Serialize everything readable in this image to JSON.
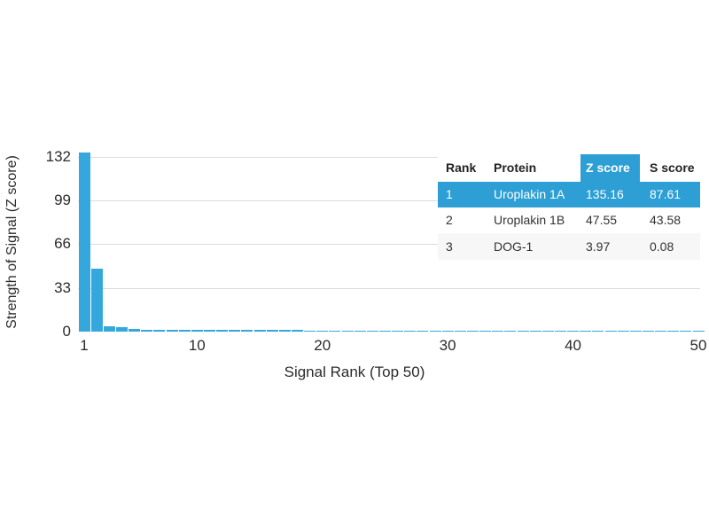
{
  "accent_color": "#2d9fd4",
  "bar_color": "#34a8dc",
  "grid_color": "#dcdcdc",
  "chart_data": {
    "type": "bar",
    "title": "",
    "xlabel": "Signal Rank (Top 50)",
    "ylabel": "Strength of Signal (Z score)",
    "x_ticks": [
      1,
      10,
      20,
      30,
      40,
      50
    ],
    "y_ticks": [
      0,
      33,
      66,
      99,
      132
    ],
    "ylim": [
      0,
      140
    ],
    "xlim": [
      1,
      50
    ],
    "grid": "horizontal-only",
    "legend": "none",
    "x": [
      1,
      2,
      3,
      4,
      5,
      6,
      7,
      8,
      9,
      10,
      11,
      12,
      13,
      14,
      15,
      16,
      17,
      18,
      19,
      20,
      21,
      22,
      23,
      24,
      25,
      26,
      27,
      28,
      29,
      30,
      31,
      32,
      33,
      34,
      35,
      36,
      37,
      38,
      39,
      40,
      41,
      42,
      43,
      44,
      45,
      46,
      47,
      48,
      49,
      50
    ],
    "values": [
      135.16,
      47.55,
      3.97,
      3.31,
      2.05,
      1.62,
      1.48,
      1.39,
      1.31,
      1.26,
      1.22,
      1.19,
      1.16,
      1.13,
      1.1,
      1.08,
      1.05,
      1.03,
      1.01,
      0.99,
      0.97,
      0.95,
      0.94,
      0.92,
      0.91,
      0.89,
      0.88,
      0.86,
      0.85,
      0.84,
      0.83,
      0.82,
      0.81,
      0.8,
      0.79,
      0.78,
      0.77,
      0.76,
      0.76,
      0.75,
      0.74,
      0.73,
      0.73,
      0.72,
      0.71,
      0.71,
      0.7,
      0.69,
      0.69,
      0.68
    ]
  },
  "axes": {
    "x_title": "Signal Rank (Top 50)",
    "y_title": "Strength of Signal (Z score)"
  },
  "table": {
    "columns": {
      "rank": "Rank",
      "protein": "Protein",
      "z": "Z score",
      "s": "S score"
    },
    "highlighted_column": "Z score",
    "rows": [
      {
        "rank": "1",
        "protein": "Uroplakin 1A",
        "z": "135.16",
        "s": "87.61",
        "highlighted": true
      },
      {
        "rank": "2",
        "protein": "Uroplakin 1B",
        "z": "47.55",
        "s": "43.58",
        "highlighted": false
      },
      {
        "rank": "3",
        "protein": "DOG-1",
        "z": "3.97",
        "s": "0.08",
        "highlighted": false
      }
    ]
  }
}
